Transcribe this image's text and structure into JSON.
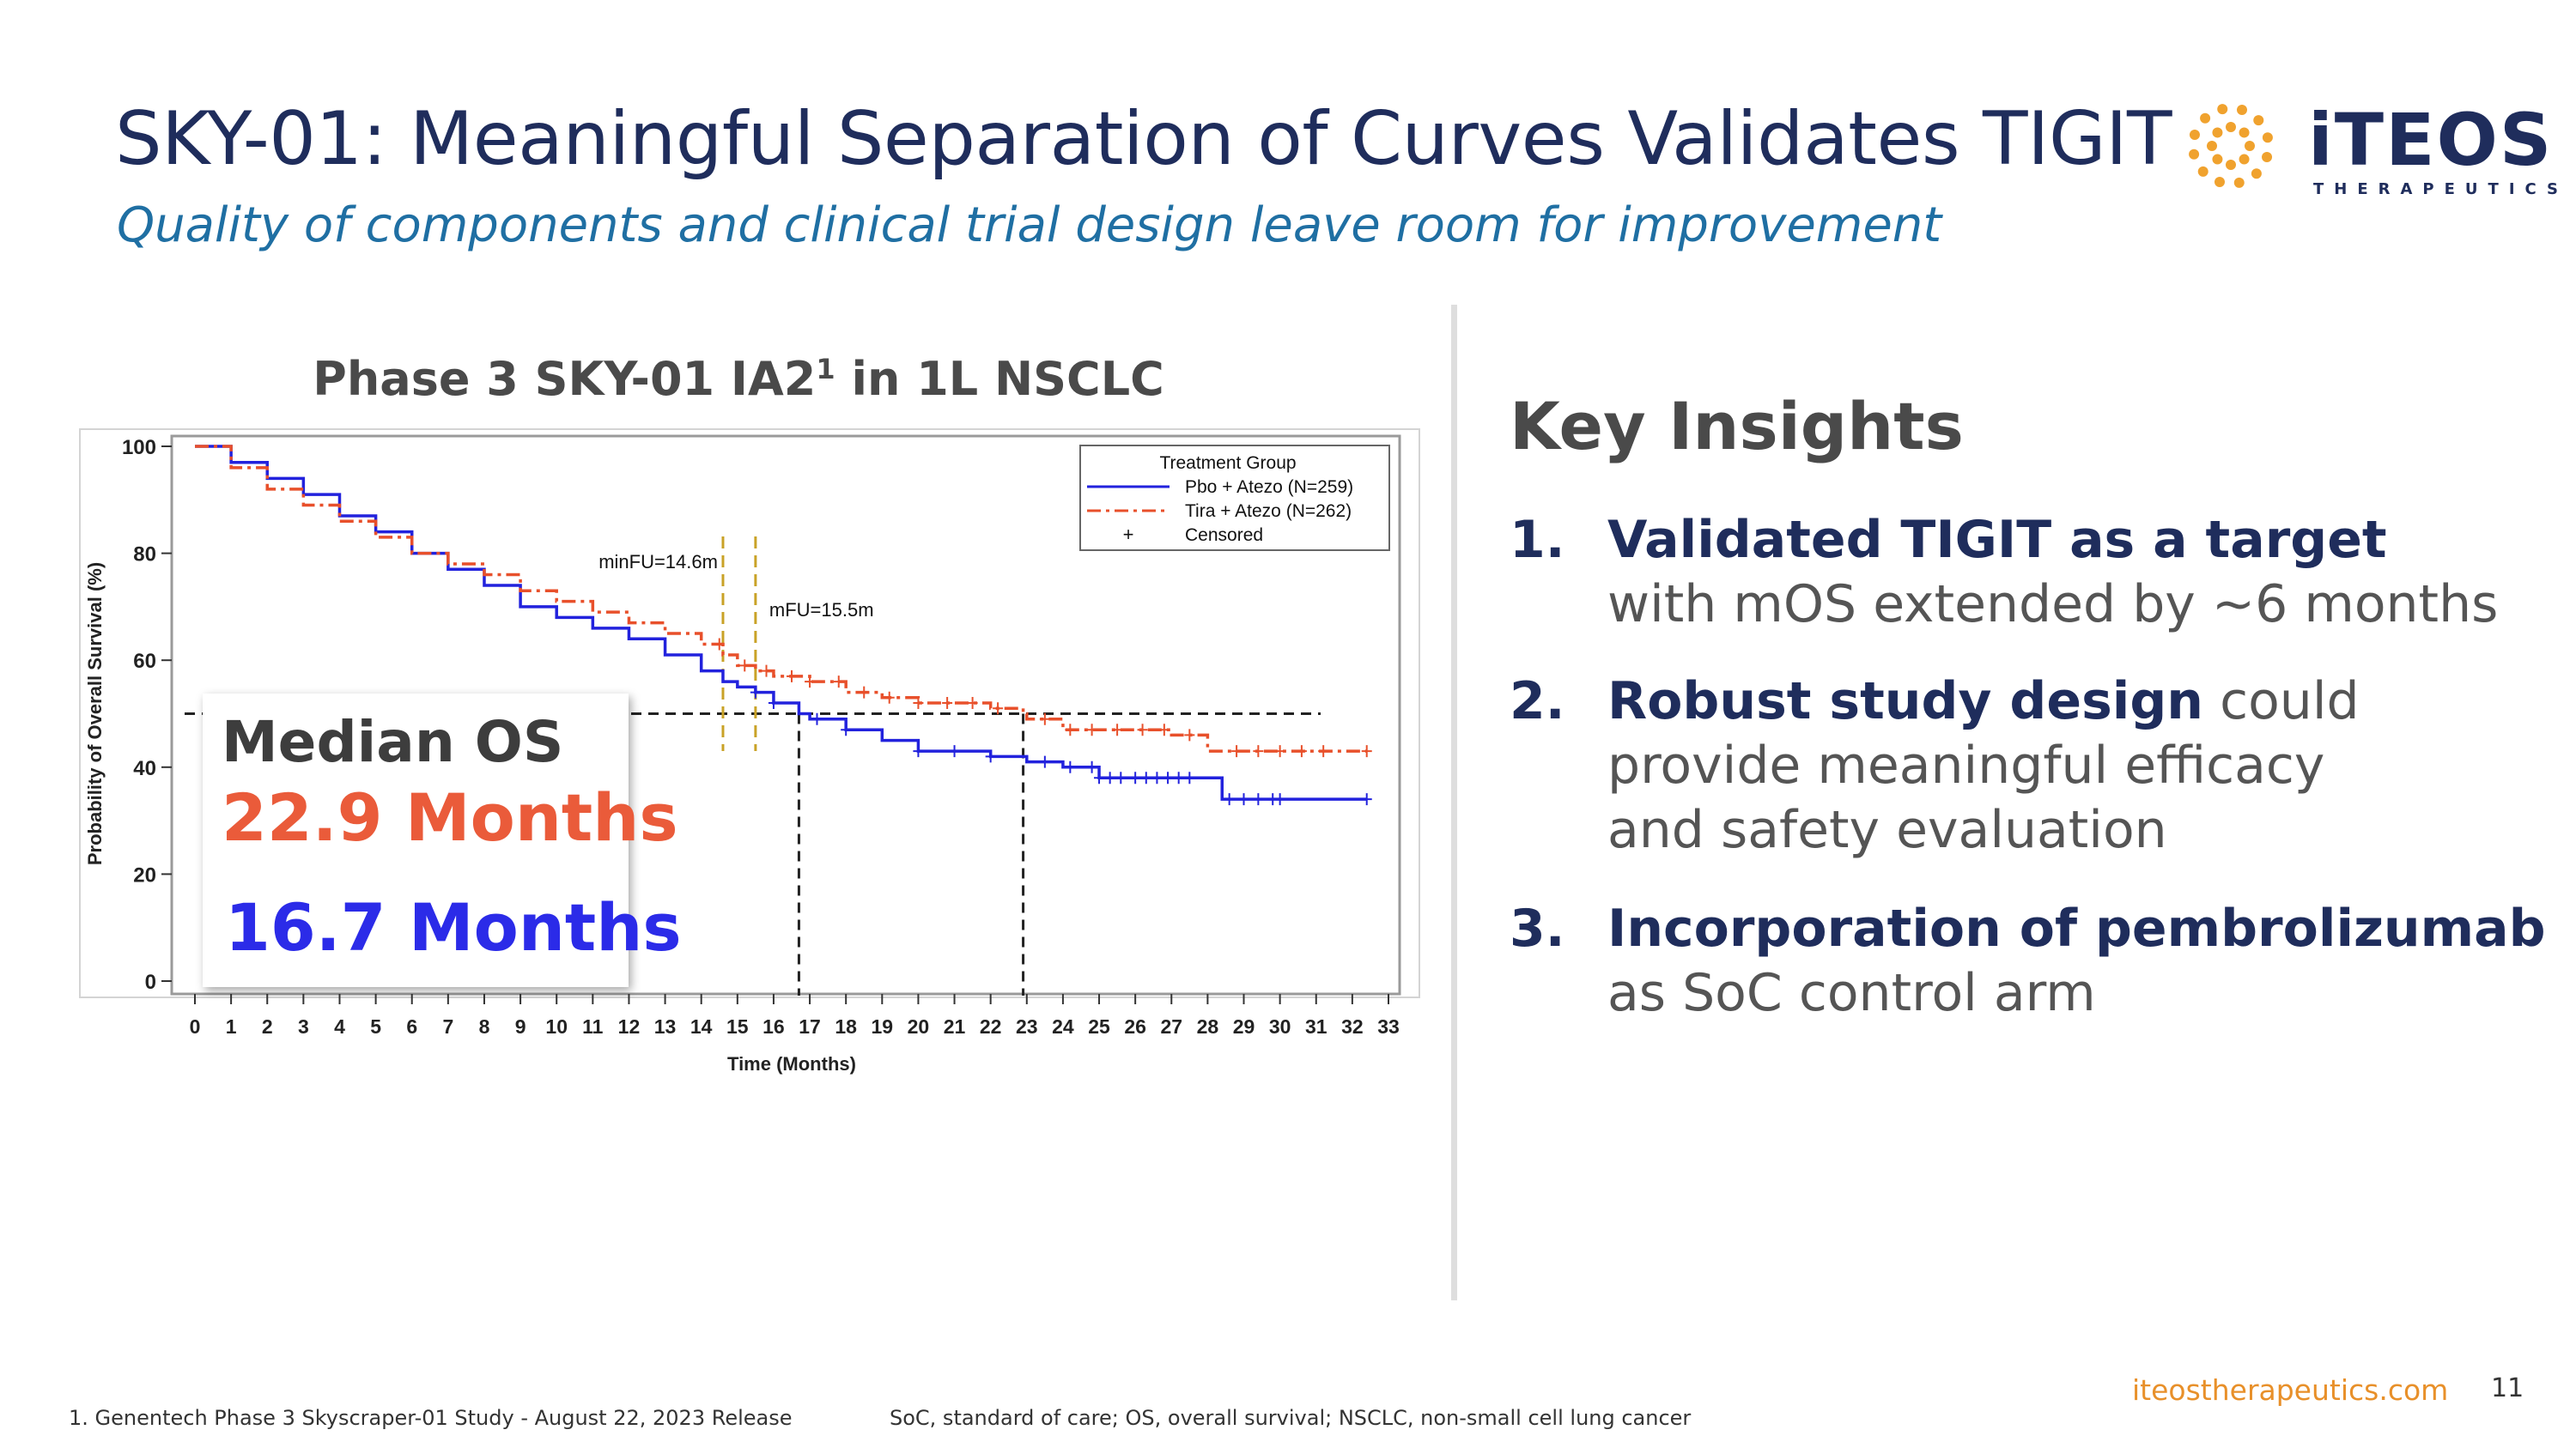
{
  "header": {
    "title": "SKY-01: Meaningful Separation of Curves Validates TIGIT",
    "subtitle": "Quality of components and clinical trial design leave room for improvement"
  },
  "logo": {
    "word": "iTEOS",
    "sub": "THERAPEUTICS",
    "dot_color": "#f0a22e"
  },
  "chart_title": {
    "main": "Phase 3 SKY-01 IA2",
    "sup": "1",
    "suffix": " in 1L NSCLC"
  },
  "median_os": {
    "label": "Median OS",
    "tira": "22.9 Months",
    "pbo": "16.7 Months"
  },
  "chart_data": {
    "type": "line",
    "subtype": "kaplan-meier",
    "xlabel": "Time (Months)",
    "ylabel": "Probability of Overall Survival (%)",
    "xlim": [
      0,
      33
    ],
    "ylim": [
      0,
      100
    ],
    "x_ticks": [
      0,
      1,
      2,
      3,
      4,
      5,
      6,
      7,
      8,
      9,
      10,
      11,
      12,
      13,
      14,
      15,
      16,
      17,
      18,
      19,
      20,
      21,
      22,
      23,
      24,
      25,
      26,
      27,
      28,
      29,
      30,
      31,
      32,
      33
    ],
    "y_ticks": [
      0,
      20,
      40,
      60,
      80,
      100
    ],
    "legend": {
      "title": "Treatment Group",
      "position": "top-right",
      "entries": [
        "Pbo + Atezo (N=259)",
        "Tira + Atezo (N=262)",
        "Censored"
      ],
      "censored_symbol": "+"
    },
    "annotations": [
      {
        "text": "minFU=14.6m",
        "x": 14.6
      },
      {
        "text": "mFU=15.5m",
        "x": 15.5
      }
    ],
    "median_line_y": 50,
    "medians": {
      "Pbo + Atezo (N=259)": 16.7,
      "Tira + Atezo (N=262)": 22.9
    },
    "series": [
      {
        "name": "Pbo + Atezo (N=259)",
        "color": "#2222dd",
        "style": "solid",
        "x": [
          0,
          1,
          2,
          3,
          4,
          5,
          6,
          7,
          8,
          9,
          10,
          11,
          12,
          13,
          14,
          14.6,
          15,
          15.5,
          16,
          16.7,
          17,
          18,
          19,
          20,
          21,
          22,
          23,
          24,
          25,
          26,
          27,
          28,
          28.4,
          29,
          30,
          31,
          32.4
        ],
        "y": [
          100,
          97,
          94,
          91,
          87,
          84,
          80,
          77,
          74,
          70,
          68,
          66,
          64,
          61,
          58,
          56,
          55,
          54,
          52,
          50,
          49,
          47,
          45,
          43,
          43,
          42,
          41,
          40,
          38,
          38,
          38,
          38,
          34,
          34,
          34,
          34,
          34
        ],
        "censored_x": [
          15.5,
          16,
          17.2,
          18,
          20,
          21,
          22,
          23.5,
          24.2,
          24.8,
          25,
          25.3,
          25.6,
          26,
          26.3,
          26.6,
          26.9,
          27.2,
          27.5,
          28.6,
          29,
          29.4,
          29.8,
          30,
          32.4
        ]
      },
      {
        "name": "Tira + Atezo (N=262)",
        "color": "#e8502b",
        "style": "dash-dot",
        "x": [
          0,
          1,
          2,
          3,
          4,
          5,
          6,
          7,
          8,
          9,
          10,
          11,
          12,
          13,
          14,
          14.6,
          15,
          15.5,
          16,
          17,
          18,
          19,
          20,
          21,
          22,
          22.9,
          23,
          24,
          25,
          26,
          27,
          27.6,
          28,
          29,
          30,
          31,
          32.4
        ],
        "y": [
          100,
          96,
          92,
          89,
          86,
          83,
          80,
          78,
          76,
          73,
          71,
          69,
          67,
          65,
          63,
          61,
          59,
          58,
          57,
          56,
          54,
          53,
          52,
          52,
          51,
          50,
          49,
          47,
          47,
          47,
          46,
          46,
          43,
          43,
          43,
          43,
          43
        ],
        "censored_x": [
          14.5,
          15.2,
          15.8,
          16.5,
          17,
          17.8,
          18.5,
          19.2,
          20,
          20.8,
          21.5,
          22.2,
          23.5,
          24.2,
          24.8,
          25.5,
          26.2,
          26.8,
          27.5,
          28.8,
          29.4,
          30,
          30.6,
          31.2,
          32.4
        ]
      }
    ]
  },
  "insights": {
    "title": "Key Insights",
    "items": [
      {
        "num": "1.",
        "highlight": "Validated TIGIT as a target",
        "rest_inline": "",
        "lines": [
          "with mOS extended by ~6 months"
        ]
      },
      {
        "num": "2.",
        "highlight": "Robust study design",
        "rest_inline": " could",
        "lines": [
          "provide meaningful efficacy",
          "and safety evaluation"
        ]
      },
      {
        "num": "3.",
        "highlight": "Incorporation of pembrolizumab",
        "rest_inline": "",
        "lines": [
          "as SoC control arm"
        ]
      }
    ]
  },
  "footer": {
    "footnote": "1. Genentech Phase 3 Skyscraper-01 Study - August 22, 2023 Release",
    "abbreviations": "SoC, standard of care; OS, overall survival; NSCLC, non-small cell lung cancer",
    "website": "iteostherapeutics.com",
    "page": "11"
  }
}
